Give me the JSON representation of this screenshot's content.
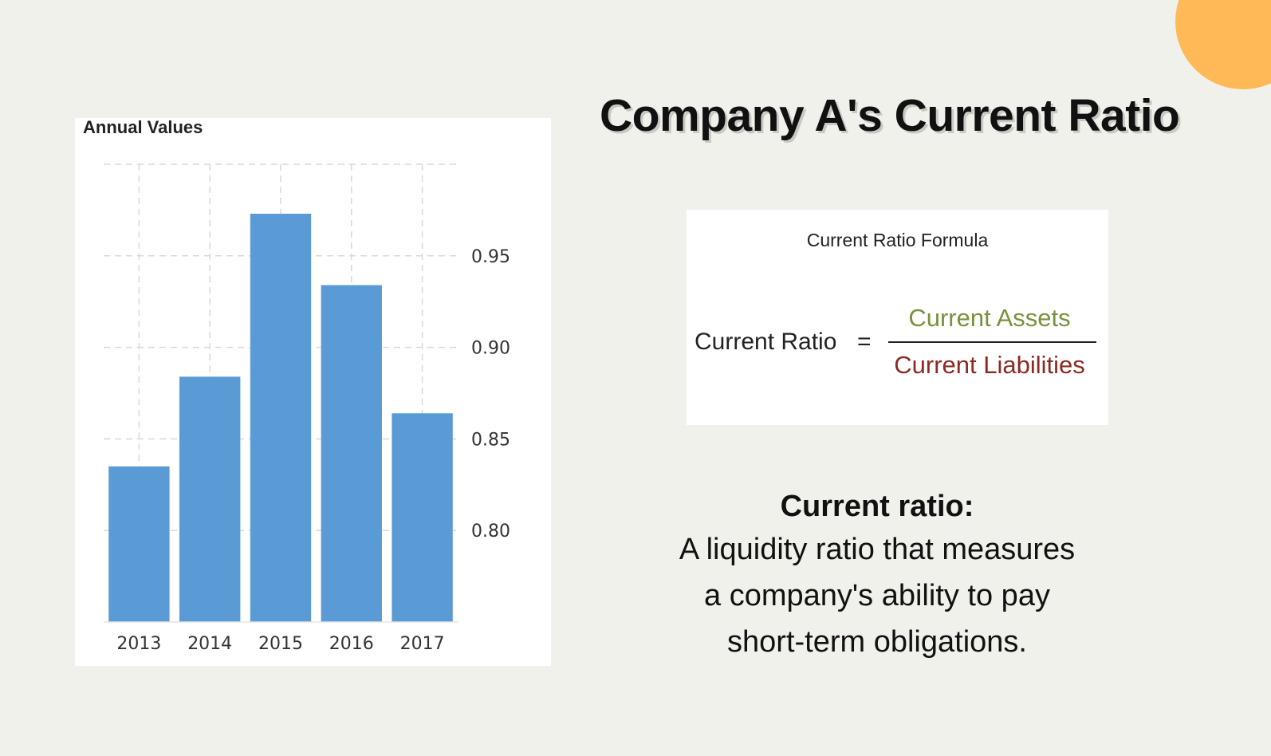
{
  "title": "Company A's Current Ratio",
  "colors": {
    "background": "#f1f1ec",
    "accent_circle": "#ffb957",
    "bar": "#5b9bd5",
    "numerator": "#77923b",
    "denominator": "#8b2a24"
  },
  "chart_data": {
    "type": "bar",
    "title": "Annual Values",
    "categories": [
      "2013",
      "2014",
      "2015",
      "2016",
      "2017"
    ],
    "values": [
      0.835,
      0.884,
      0.973,
      0.934,
      0.864
    ],
    "ylim": [
      0.75,
      1.0
    ],
    "yticks": [
      0.8,
      0.85,
      0.9,
      0.95
    ],
    "ytick_labels": [
      "0.80",
      "0.85",
      "0.90",
      "0.95"
    ],
    "y_axis_position": "right",
    "grid": true,
    "legend": "none"
  },
  "formula": {
    "caption": "Current Ratio Formula",
    "lhs": "Current Ratio",
    "equals": "=",
    "numerator": "Current Assets",
    "denominator": "Current Liabilities"
  },
  "definition": {
    "heading": "Current ratio:",
    "lines": [
      "A liquidity ratio that measures",
      "a company's ability to pay",
      "short-term obligations."
    ]
  }
}
